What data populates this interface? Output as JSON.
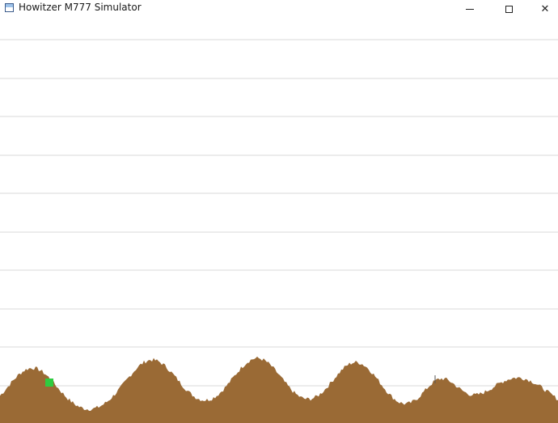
{
  "window": {
    "title": "Howitzer M777 Simulator",
    "icon": "app-window-icon",
    "controls": {
      "minimize": "minimize-icon",
      "maximize": "maximize-icon",
      "close": "close-icon",
      "close_glyph": "✕"
    }
  },
  "hud": {
    "readout": "",
    "altitude_labels": [
      "",
      "",
      "",
      "",
      "",
      "",
      "",
      "",
      "",
      ""
    ]
  },
  "terrain": {
    "color": "#9a6a35",
    "gridline_color": "#d8d8d8",
    "distance_labels": [
      "",
      "",
      "",
      "",
      ""
    ],
    "howitzer": {
      "color": "#2ecc40",
      "label": ""
    },
    "target": {
      "label": ""
    }
  },
  "colors": {
    "background": "#ffffff",
    "terrain": "#9a6a35",
    "howitzer": "#2ecc40"
  }
}
